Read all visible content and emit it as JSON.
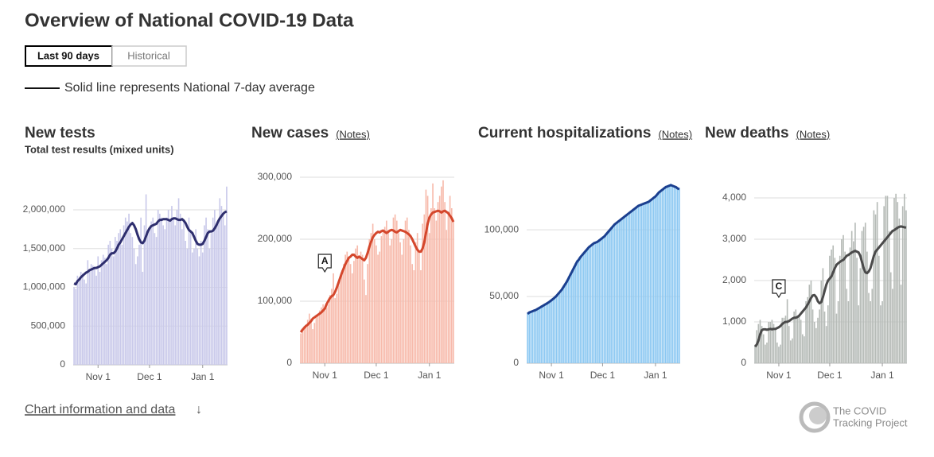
{
  "header": {
    "title": "Overview of National COVID-19 Data",
    "tabs": [
      "Last 90 days",
      "Historical"
    ],
    "legend": "Solid line represents National 7-day average"
  },
  "footer": {
    "link": "Chart information and data",
    "arrow": "↓",
    "logo": [
      "The COVID",
      "Tracking Project"
    ]
  },
  "chart_data": [
    {
      "type": "bar",
      "title": "New tests",
      "subtitle": "Total test results (mixed units)",
      "color": "#c9c9ea",
      "average_color": "#2e2e6e",
      "categories": [
        null,
        null,
        null,
        null,
        null,
        null,
        null,
        null,
        null,
        null,
        null,
        null,
        null,
        null,
        "Nov 1",
        null,
        null,
        null,
        null,
        null,
        null,
        null,
        null,
        null,
        null,
        null,
        null,
        null,
        null,
        null,
        null,
        null,
        null,
        null,
        null,
        null,
        null,
        null,
        null,
        null,
        null,
        null,
        null,
        null,
        "Dec 1",
        null,
        null,
        null,
        null,
        null,
        null,
        null,
        null,
        null,
        null,
        null,
        null,
        null,
        null,
        null,
        null,
        null,
        null,
        null,
        null,
        null,
        null,
        null,
        null,
        null,
        null,
        null,
        null,
        null,
        null,
        "Jan 1",
        null,
        null,
        null,
        null,
        null,
        null,
        null,
        null,
        null,
        null,
        null,
        null,
        null,
        null
      ],
      "values": [
        1000000,
        980000,
        1150000,
        1120000,
        1200000,
        1180000,
        1100000,
        1050000,
        1350000,
        1200000,
        1300000,
        1280000,
        1250000,
        1150000,
        1400000,
        1200000,
        1350000,
        1420000,
        1380000,
        1300000,
        1550000,
        1600000,
        1500000,
        1400000,
        1650000,
        1600000,
        1700000,
        1750000,
        1550000,
        1800000,
        1900000,
        1850000,
        1950000,
        1700000,
        1650000,
        1500000,
        1300000,
        1400000,
        1550000,
        1900000,
        1200000,
        1800000,
        2200000,
        1700000,
        1750000,
        1850000,
        1900000,
        1700000,
        1650000,
        2000000,
        1950000,
        1900000,
        1800000,
        1750000,
        1900000,
        2000000,
        1850000,
        2050000,
        1900000,
        1800000,
        2000000,
        2150000,
        1950000,
        1750000,
        1850000,
        1600000,
        1500000,
        1900000,
        1700000,
        1450000,
        1500000,
        1750000,
        1500000,
        1400000,
        1600000,
        1450000,
        1800000,
        1900000,
        1750000,
        1500000,
        1700000,
        1900000,
        2000000,
        1800000,
        1850000,
        2150000,
        2050000,
        1950000,
        1800000,
        2300000
      ],
      "average": [
        1050000,
        1040000,
        1080000,
        1100000,
        1130000,
        1150000,
        1170000,
        1190000,
        1200000,
        1220000,
        1230000,
        1240000,
        1250000,
        1250000,
        1260000,
        1270000,
        1290000,
        1310000,
        1330000,
        1350000,
        1380000,
        1420000,
        1440000,
        1440000,
        1460000,
        1500000,
        1550000,
        1580000,
        1620000,
        1660000,
        1700000,
        1740000,
        1780000,
        1810000,
        1830000,
        1800000,
        1750000,
        1680000,
        1620000,
        1580000,
        1570000,
        1600000,
        1660000,
        1720000,
        1760000,
        1790000,
        1800000,
        1810000,
        1820000,
        1850000,
        1870000,
        1870000,
        1880000,
        1880000,
        1880000,
        1870000,
        1860000,
        1880000,
        1890000,
        1890000,
        1880000,
        1870000,
        1870000,
        1880000,
        1860000,
        1830000,
        1780000,
        1740000,
        1720000,
        1700000,
        1650000,
        1600000,
        1560000,
        1550000,
        1550000,
        1560000,
        1600000,
        1650000,
        1700000,
        1720000,
        1720000,
        1730000,
        1760000,
        1800000,
        1850000,
        1890000,
        1920000,
        1950000,
        1970000,
        1980000
      ],
      "ylim": [
        0,
        2400000
      ],
      "yticks": [
        0,
        {
          "value": 500000,
          "label": "500,000"
        },
        {
          "value": 1000000,
          "label": "1,000,000"
        },
        {
          "value": 1500000,
          "label": "1,500,000"
        },
        {
          "value": 2000000,
          "label": "2,000,000"
        }
      ],
      "grid": true
    },
    {
      "type": "bar",
      "title": "New cases",
      "notes": "(Notes)",
      "annotation": "A",
      "color": "#f7baab",
      "average_color": "#d4472c",
      "categories": [
        null,
        null,
        null,
        null,
        null,
        null,
        null,
        null,
        null,
        null,
        null,
        null,
        null,
        null,
        "Nov 1",
        null,
        null,
        null,
        null,
        null,
        null,
        null,
        null,
        null,
        null,
        null,
        null,
        null,
        null,
        null,
        null,
        null,
        null,
        null,
        null,
        null,
        null,
        null,
        null,
        null,
        null,
        null,
        null,
        null,
        "Dec 1",
        null,
        null,
        null,
        null,
        null,
        null,
        null,
        null,
        null,
        null,
        null,
        null,
        null,
        null,
        null,
        null,
        null,
        null,
        null,
        null,
        null,
        null,
        null,
        null,
        null,
        null,
        null,
        null,
        null,
        null,
        "Jan 1",
        null,
        null,
        null,
        null,
        null,
        null,
        null,
        null,
        null,
        null,
        null,
        null,
        null,
        null
      ],
      "values": [
        48000,
        55000,
        60000,
        62000,
        70000,
        80000,
        72000,
        55000,
        65000,
        75000,
        78000,
        85000,
        90000,
        95000,
        85000,
        90000,
        95000,
        110000,
        120000,
        145000,
        105000,
        112000,
        125000,
        140000,
        150000,
        160000,
        175000,
        180000,
        170000,
        160000,
        145000,
        165000,
        185000,
        190000,
        170000,
        180000,
        175000,
        135000,
        110000,
        160000,
        200000,
        210000,
        225000,
        200000,
        190000,
        175000,
        180000,
        205000,
        215000,
        220000,
        230000,
        215000,
        190000,
        200000,
        235000,
        240000,
        230000,
        210000,
        195000,
        175000,
        200000,
        230000,
        235000,
        215000,
        190000,
        160000,
        150000,
        195000,
        210000,
        180000,
        150000,
        225000,
        240000,
        280000,
        270000,
        210000,
        250000,
        290000,
        250000,
        230000,
        260000,
        270000,
        285000,
        295000,
        260000,
        215000,
        245000,
        270000,
        250000,
        230000
      ],
      "average": [
        50000,
        54000,
        57000,
        60000,
        62000,
        65000,
        68000,
        72000,
        74000,
        76000,
        78000,
        80000,
        82000,
        85000,
        88000,
        95000,
        100000,
        105000,
        108000,
        110000,
        115000,
        122000,
        130000,
        138000,
        146000,
        153000,
        160000,
        165000,
        170000,
        172000,
        175000,
        175000,
        172000,
        170000,
        172000,
        170000,
        168000,
        166000,
        170000,
        178000,
        188000,
        196000,
        203000,
        207000,
        210000,
        212000,
        211000,
        213000,
        214000,
        212000,
        210000,
        212000,
        214000,
        215000,
        214000,
        212000,
        211000,
        213000,
        215000,
        214000,
        213000,
        212000,
        210000,
        208000,
        205000,
        200000,
        194000,
        188000,
        183000,
        180000,
        180000,
        185000,
        195000,
        210000,
        225000,
        235000,
        240000,
        243000,
        244000,
        245000,
        246000,
        245000,
        243000,
        245000,
        246000,
        244000,
        242000,
        238000,
        234000,
        228000
      ],
      "ylim": [
        0,
        300000
      ],
      "yticks": [
        0,
        {
          "value": 100000,
          "label": "100,000"
        },
        {
          "value": 200000,
          "label": "200,000"
        },
        {
          "value": 300000,
          "label": "300,000"
        }
      ],
      "grid": true
    },
    {
      "type": "bar",
      "title": "Current hospitalizations",
      "notes": "(Notes)",
      "color": "#8cc8f2",
      "average_color": "#1b3f8f",
      "categories": [
        null,
        null,
        null,
        null,
        null,
        null,
        null,
        null,
        null,
        null,
        null,
        null,
        null,
        null,
        "Nov 1",
        null,
        null,
        null,
        null,
        null,
        null,
        null,
        null,
        null,
        null,
        null,
        null,
        null,
        null,
        null,
        null,
        null,
        null,
        null,
        null,
        null,
        null,
        null,
        null,
        null,
        null,
        null,
        null,
        null,
        "Dec 1",
        null,
        null,
        null,
        null,
        null,
        null,
        null,
        null,
        null,
        null,
        null,
        null,
        null,
        null,
        null,
        null,
        null,
        null,
        null,
        null,
        null,
        null,
        null,
        null,
        null,
        null,
        null,
        null,
        null,
        null,
        "Jan 1",
        null,
        null,
        null,
        null,
        null,
        null,
        null,
        null,
        null,
        null,
        null,
        null,
        null,
        null
      ],
      "values": [
        37500,
        38000,
        39000,
        39500,
        40000,
        40500,
        41000,
        42000,
        43000,
        43500,
        44000,
        45000,
        46000,
        47000,
        48000,
        49000,
        50000,
        51500,
        53000,
        54500,
        56000,
        58000,
        60000,
        62500,
        65000,
        67500,
        70000,
        72500,
        75000,
        77500,
        79000,
        80500,
        82000,
        83500,
        85000,
        86500,
        87500,
        88500,
        89500,
        90500,
        91000,
        92000,
        93000,
        94000,
        95000,
        96000,
        97500,
        99000,
        100500,
        102000,
        103500,
        104500,
        105500,
        106500,
        107500,
        108500,
        109500,
        110500,
        111500,
        112500,
        113500,
        114500,
        115500,
        116500,
        117500,
        118000,
        119000,
        119500,
        120000,
        120500,
        121000,
        122000,
        123000,
        124000,
        125000,
        126000,
        127500,
        129000,
        130000,
        131000,
        132000,
        133000,
        133500,
        134000,
        134500,
        133500,
        133000,
        132500,
        131500,
        131000
      ],
      "average": [
        37000,
        38000,
        38500,
        39000,
        39500,
        40000,
        40800,
        41500,
        42300,
        43000,
        43800,
        44500,
        45300,
        46200,
        47200,
        48200,
        49300,
        50500,
        52000,
        53500,
        55000,
        57000,
        59000,
        61000,
        63500,
        66000,
        68500,
        71000,
        73500,
        76000,
        77500,
        79500,
        81000,
        82500,
        84000,
        85500,
        87000,
        88000,
        89000,
        90000,
        90500,
        91000,
        92000,
        93000,
        94000,
        95000,
        96500,
        98000,
        99500,
        101000,
        102500,
        104000,
        105000,
        106000,
        107000,
        108000,
        109000,
        110000,
        111000,
        112000,
        113000,
        114000,
        115000,
        116000,
        117000,
        118000,
        118500,
        119000,
        119500,
        120000,
        120500,
        121000,
        122000,
        123000,
        124000,
        125000,
        126500,
        128000,
        129000,
        130000,
        131000,
        132000,
        132500,
        133000,
        133500,
        133000,
        132500,
        132000,
        131000,
        130500
      ],
      "ylim": [
        0,
        140000
      ],
      "yticks": [
        0,
        {
          "value": 50000,
          "label": "50,000"
        },
        {
          "value": 100000,
          "label": "100,000"
        }
      ],
      "grid": true
    },
    {
      "type": "bar",
      "title": "New deaths",
      "notes": "(Notes)",
      "annotation": "C",
      "color": "#b6bbb7",
      "average_color": "#4a4a4a",
      "categories": [
        null,
        null,
        null,
        null,
        null,
        null,
        null,
        null,
        null,
        null,
        null,
        null,
        null,
        null,
        "Nov 1",
        null,
        null,
        null,
        null,
        null,
        null,
        null,
        null,
        null,
        null,
        null,
        null,
        null,
        null,
        null,
        null,
        null,
        null,
        null,
        null,
        null,
        null,
        null,
        null,
        null,
        null,
        null,
        null,
        null,
        "Dec 1",
        null,
        null,
        null,
        null,
        null,
        null,
        null,
        null,
        null,
        null,
        null,
        null,
        null,
        null,
        null,
        null,
        null,
        null,
        null,
        null,
        null,
        null,
        null,
        null,
        null,
        null,
        null,
        null,
        null,
        null,
        "Jan 1",
        null,
        null,
        null,
        null,
        null,
        null,
        null,
        null,
        null,
        null,
        null,
        null,
        null,
        null
      ],
      "values": [
        450,
        800,
        950,
        1050,
        900,
        700,
        450,
        500,
        1000,
        1000,
        1050,
        950,
        850,
        500,
        400,
        450,
        1100,
        1100,
        1150,
        1550,
        900,
        550,
        600,
        1250,
        1300,
        1150,
        1150,
        1050,
        700,
        650,
        1500,
        1600,
        1900,
        2000,
        1300,
        1000,
        850,
        1100,
        1300,
        2000,
        2300,
        1250,
        900,
        1400,
        2600,
        2750,
        2850,
        2550,
        1200,
        1500,
        2600,
        3000,
        3100,
        2700,
        1800,
        1500,
        2800,
        3200,
        2950,
        3400,
        2550,
        1400,
        2300,
        3200,
        3300,
        3400,
        2700,
        1700,
        1500,
        1800,
        3700,
        3600,
        3900,
        2600,
        1400,
        1500,
        3800,
        4050,
        4050,
        3200,
        2200,
        1800,
        4000,
        4100,
        3900,
        3500,
        1900,
        3800,
        4100,
        3700
      ],
      "average": [
        400,
        450,
        550,
        700,
        800,
        820,
        820,
        810,
        820,
        830,
        820,
        830,
        830,
        850,
        870,
        900,
        950,
        980,
        1000,
        1000,
        1020,
        1050,
        1080,
        1100,
        1100,
        1120,
        1150,
        1200,
        1250,
        1300,
        1350,
        1420,
        1500,
        1580,
        1640,
        1650,
        1600,
        1500,
        1450,
        1480,
        1600,
        1750,
        1900,
        2000,
        2050,
        2100,
        2200,
        2300,
        2380,
        2420,
        2450,
        2480,
        2500,
        2550,
        2600,
        2620,
        2650,
        2680,
        2700,
        2720,
        2700,
        2680,
        2600,
        2450,
        2300,
        2200,
        2180,
        2220,
        2300,
        2450,
        2600,
        2700,
        2750,
        2800,
        2850,
        2900,
        2950,
        3000,
        3050,
        3100,
        3150,
        3200,
        3220,
        3250,
        3280,
        3300,
        3310,
        3300,
        3290,
        3280
      ],
      "ylim": [
        0,
        4500
      ],
      "yticks": [
        0,
        {
          "value": 1000,
          "label": "1,000"
        },
        {
          "value": 2000,
          "label": "2,000"
        },
        {
          "value": 3000,
          "label": "3,000"
        },
        {
          "value": 4000,
          "label": "4,000"
        }
      ],
      "grid": true
    }
  ]
}
